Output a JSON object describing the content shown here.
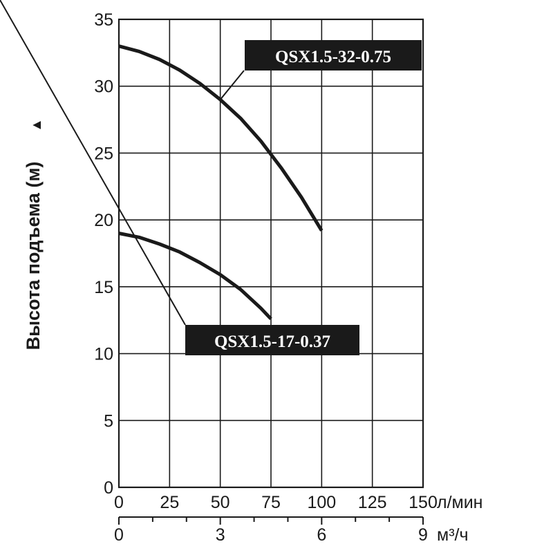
{
  "chart_data": {
    "type": "line",
    "ylabel": "Высота подъема (м)",
    "ylabel_arrow": "▲",
    "ylim": [
      0,
      35
    ],
    "yticks": [
      0,
      5,
      10,
      15,
      20,
      25,
      30,
      35
    ],
    "xlim": [
      0,
      150
    ],
    "xticks": [
      0,
      25,
      50,
      75,
      100,
      125,
      150
    ],
    "xunit": "л/мин",
    "x2ticks": [
      0,
      3,
      6,
      9
    ],
    "x2unit": "м³/ч",
    "grid": true,
    "series": [
      {
        "name": "QSX1.5-32-0.75",
        "color": "#1a1a1a",
        "x": [
          0,
          10,
          20,
          30,
          40,
          50,
          60,
          70,
          80,
          90,
          100
        ],
        "y": [
          33.0,
          32.6,
          32.0,
          31.2,
          30.2,
          29.0,
          27.6,
          25.9,
          23.9,
          21.7,
          19.2
        ]
      },
      {
        "name": "QSX1.5-17-0.37",
        "color": "#1a1a1a",
        "x": [
          0,
          10,
          20,
          30,
          40,
          50,
          60,
          70,
          75
        ],
        "y": [
          19.0,
          18.7,
          18.2,
          17.6,
          16.8,
          15.9,
          14.8,
          13.4,
          12.6
        ]
      }
    ]
  }
}
